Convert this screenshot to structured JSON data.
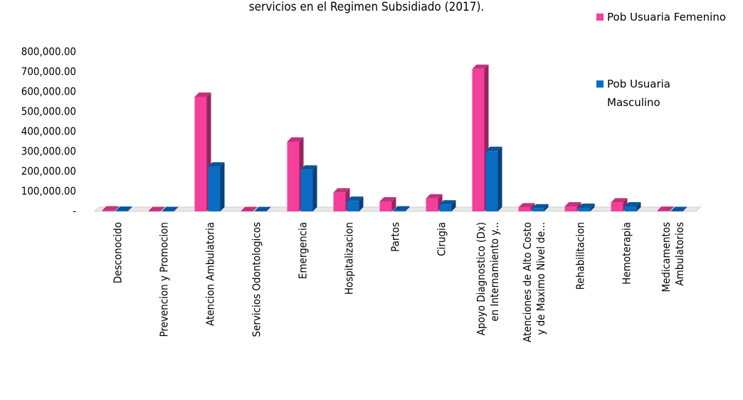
{
  "chart_data": {
    "type": "bar3d",
    "title": "servicios en el Regimen Subsidiado (2017).",
    "categories": [
      "Desconocido",
      "Prevencion y Promocion",
      "Atencion Ambulatoria",
      "Servicios Odontologicos",
      "Emergencia",
      "Hospitalizacion",
      "Partos",
      "Cirugia",
      "Apoyo Diagnostico (Dx)\nen Internamiento y...",
      "Atenciones de Alto Costo\ny de Maximo Nivel de...",
      "Rehabilitacion",
      "Hemoterapia",
      "Medicamentos\nAmbulatorios"
    ],
    "series": [
      {
        "name": "Pob Usuaria Femenino",
        "color": "#f43f9b",
        "values": [
          5000,
          2000,
          575000,
          2000,
          350000,
          95000,
          50000,
          65000,
          715000,
          20000,
          25000,
          45000,
          3000
        ]
      },
      {
        "name": "Pob Usuaria Masculino",
        "color": "#0b6cc4",
        "values": [
          3000,
          2000,
          225000,
          1500,
          210000,
          53000,
          5000,
          35000,
          303000,
          15000,
          18000,
          25000,
          2000
        ]
      }
    ],
    "ylim": [
      0,
      800000
    ],
    "yticks": [
      {
        "value": 0,
        "label": "-"
      },
      {
        "value": 100000,
        "label": "100,000.00"
      },
      {
        "value": 200000,
        "label": "200,000.00"
      },
      {
        "value": 300000,
        "label": "300,000.00"
      },
      {
        "value": 400000,
        "label": "400,000.00"
      },
      {
        "value": 500000,
        "label": "500,000.00"
      },
      {
        "value": 600000,
        "label": "600,000.00"
      },
      {
        "value": 700000,
        "label": "700,000.00"
      },
      {
        "value": 800000,
        "label": "800,000.00"
      }
    ],
    "grid": false
  }
}
